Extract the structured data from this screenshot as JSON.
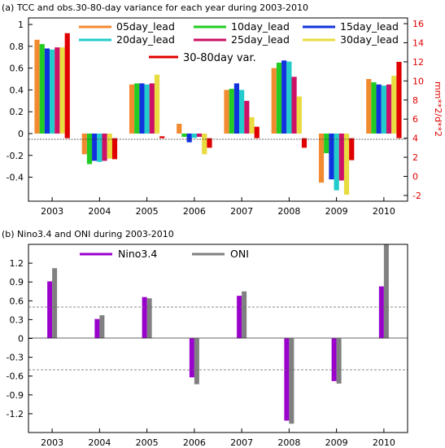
{
  "chart_data": [
    {
      "type": "bar",
      "title": "(a) TCC and obs.30-80-day variance for each year during 2003-2010",
      "categories": [
        "2003",
        "2004",
        "2005",
        "2006",
        "2007",
        "2008",
        "2009",
        "2010"
      ],
      "ylim": [
        -0.62,
        1.06
      ],
      "yticks": [
        -0.4,
        -0.2,
        0,
        0.2,
        0.4,
        0.6,
        0.8,
        1
      ],
      "ytick_labels": [
        "-0.4",
        "-0.2",
        "0",
        "0.2",
        "0.4",
        "0.6",
        "0.8",
        "1"
      ],
      "y2label": "mm**2/d**2",
      "y2lim": [
        -2.6,
        16.6
      ],
      "y2ticks": [
        -2,
        0,
        2,
        4,
        6,
        8,
        10,
        12,
        14,
        16
      ],
      "y2tick_labels": [
        "-2",
        "0",
        "2",
        "4",
        "6",
        "8",
        "10",
        "12",
        "14",
        "16"
      ],
      "y2_color": "#e00000",
      "legend_placement": "top",
      "series": [
        {
          "name": "05day_lead",
          "color": "#f28a30",
          "axis": "left",
          "values": [
            0.86,
            -0.19,
            0.45,
            0.09,
            0.4,
            0.6,
            -0.45,
            0.5
          ]
        },
        {
          "name": "10day_lead",
          "color": "#22cc22",
          "axis": "left",
          "values": [
            0.82,
            -0.28,
            0.46,
            -0.03,
            0.41,
            0.65,
            -0.18,
            0.47
          ]
        },
        {
          "name": "15day_lead",
          "color": "#1133dd",
          "axis": "left",
          "values": [
            0.78,
            -0.25,
            0.46,
            -0.08,
            0.46,
            0.67,
            -0.42,
            0.45
          ]
        },
        {
          "name": "20day_lead",
          "color": "#22cccc",
          "axis": "left",
          "values": [
            0.77,
            -0.26,
            0.45,
            -0.04,
            0.4,
            0.66,
            -0.52,
            0.44
          ]
        },
        {
          "name": "25day_lead",
          "color": "#cc1166",
          "axis": "left",
          "values": [
            0.79,
            -0.25,
            0.46,
            -0.03,
            0.3,
            0.52,
            -0.43,
            0.45
          ]
        },
        {
          "name": "30day_lead",
          "color": "#e8dc40",
          "axis": "left",
          "values": [
            0.79,
            -0.23,
            0.54,
            -0.19,
            0.15,
            0.34,
            -0.56,
            0.53
          ]
        },
        {
          "name": "30-80day var.",
          "color": "#e00000",
          "axis": "right",
          "values": [
            15.0,
            1.8,
            4.2,
            3.0,
            5.2,
            3.0,
            1.7,
            12.0
          ]
        }
      ]
    },
    {
      "type": "bar",
      "title": "(b) Nino3.4 and ONI during 2003-2010",
      "categories": [
        "2003",
        "2004",
        "2005",
        "2006",
        "2007",
        "2008",
        "2009",
        "2010"
      ],
      "ylim": [
        -1.5,
        1.5
      ],
      "yticks": [
        -1.2,
        -0.9,
        -0.6,
        -0.3,
        0,
        0.3,
        0.6,
        0.9,
        1.2
      ],
      "ytick_labels": [
        "-1.2",
        "-0.9",
        "-0.6",
        "-0.3",
        "0",
        "0.3",
        "0.6",
        "0.9",
        "1.2"
      ],
      "reference_lines": [
        0.5,
        -0.5
      ],
      "legend_placement": "top",
      "series": [
        {
          "name": "Nino3.4",
          "color": "#9900cc",
          "values": [
            0.91,
            0.31,
            0.66,
            -0.62,
            0.68,
            -1.31,
            -0.68,
            0.83
          ]
        },
        {
          "name": "ONI",
          "color": "#808080",
          "values": [
            1.12,
            0.37,
            0.64,
            -0.73,
            0.75,
            -1.36,
            -0.72,
            1.5
          ]
        }
      ]
    }
  ]
}
